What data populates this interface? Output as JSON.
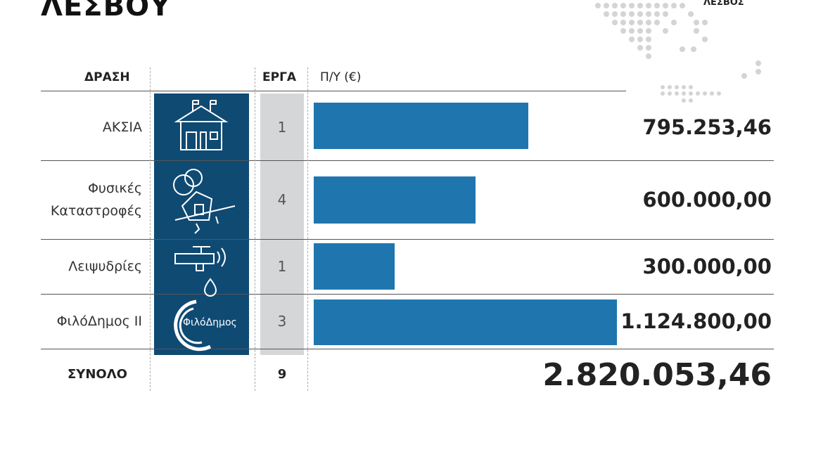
{
  "chart_data": {
    "type": "bar",
    "orientation": "horizontal",
    "title": "ΛΕΣΒΟΥ",
    "map_label": "ΛΕΣΒΟΣ",
    "headers": {
      "action": "ΔΡΑΣΗ",
      "projects": "ΕΡΓΑ",
      "budget": "Π/Υ (€)"
    },
    "categories": [
      "ΑΚΣΙΑ",
      "Φυσικές Καταστροφές",
      "Λειψυδρίες",
      "ΦιλόΔημος ΙΙ"
    ],
    "projects": [
      1,
      4,
      1,
      3
    ],
    "values": [
      795253.46,
      600000.0,
      300000.0,
      1124800.0
    ],
    "value_labels": [
      "795.253,46",
      "600.000,00",
      "300.000,00",
      "1.124.800,00"
    ],
    "color": "#1f76ae",
    "logo_text": "ΦιλόΔημος",
    "total": {
      "label": "ΣΥΝΟΛΟ",
      "projects": 9,
      "value": 2820053.46,
      "value_label": "2.820.053,46"
    }
  }
}
